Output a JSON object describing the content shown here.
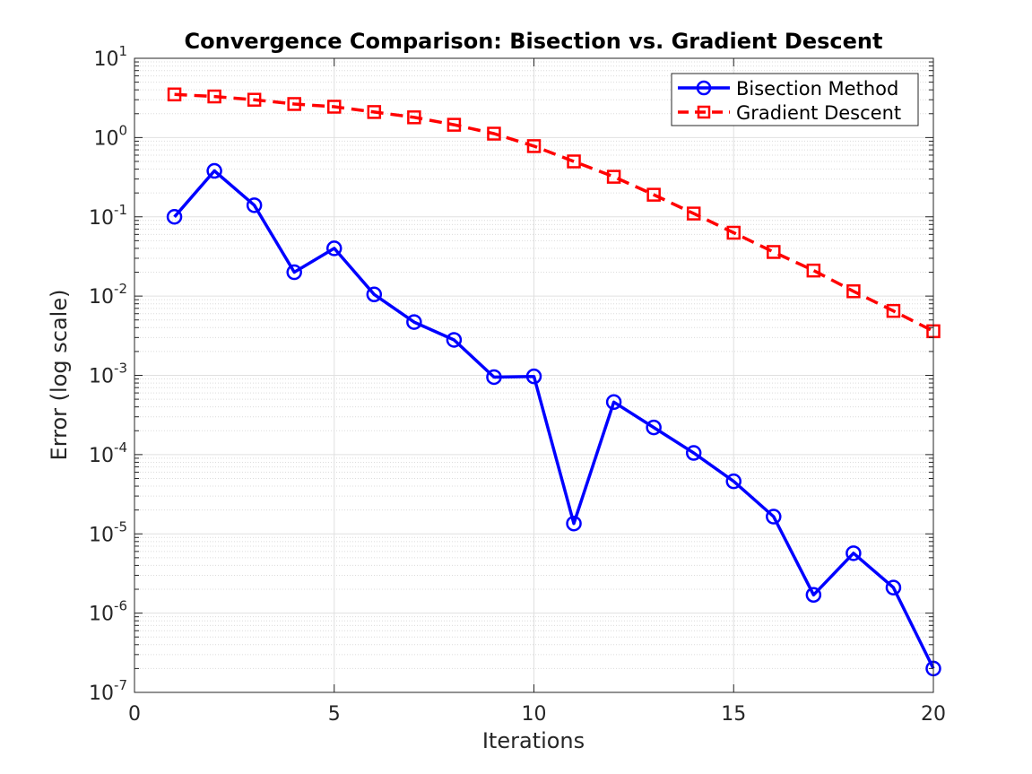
{
  "chart_data": {
    "type": "line",
    "title": "Convergence Comparison: Bisection vs. Gradient Descent",
    "xlabel": "Iterations",
    "ylabel": "Error (log scale)",
    "xlim": [
      0,
      20
    ],
    "ylim": [
      1e-07,
      10
    ],
    "yscale": "log",
    "grid": true,
    "minor_grid": true,
    "legend_position": "top-right",
    "xticks": [
      0,
      5,
      10,
      15,
      20
    ],
    "yticks": [
      {
        "value": 1e-07,
        "base": "10",
        "exp": "-7"
      },
      {
        "value": 1e-06,
        "base": "10",
        "exp": "-6"
      },
      {
        "value": 1e-05,
        "base": "10",
        "exp": "-5"
      },
      {
        "value": 0.0001,
        "base": "10",
        "exp": "-4"
      },
      {
        "value": 0.001,
        "base": "10",
        "exp": "-3"
      },
      {
        "value": 0.01,
        "base": "10",
        "exp": "-2"
      },
      {
        "value": 0.1,
        "base": "10",
        "exp": "-1"
      },
      {
        "value": 1,
        "base": "10",
        "exp": "0"
      },
      {
        "value": 10,
        "base": "10",
        "exp": "1"
      }
    ],
    "x": [
      1,
      2,
      3,
      4,
      5,
      6,
      7,
      8,
      9,
      10,
      11,
      12,
      13,
      14,
      15,
      16,
      17,
      18,
      19,
      20
    ],
    "series": [
      {
        "name": "Bisection Method",
        "color": "#0000ff",
        "line_style": "solid",
        "marker": "circle",
        "values": [
          0.1,
          0.38,
          0.14,
          0.02,
          0.04,
          0.0105,
          0.0047,
          0.0028,
          0.00095,
          0.00097,
          1.35e-05,
          0.00046,
          0.00022,
          0.000105,
          4.6e-05,
          1.65e-05,
          1.7e-06,
          5.7e-06,
          2.1e-06,
          2e-07
        ]
      },
      {
        "name": "Gradient Descent",
        "color": "#ff0000",
        "line_style": "dashed",
        "marker": "square",
        "values": [
          3.5,
          3.3,
          3.0,
          2.65,
          2.45,
          2.1,
          1.8,
          1.45,
          1.12,
          0.78,
          0.5,
          0.32,
          0.19,
          0.11,
          0.063,
          0.036,
          0.021,
          0.0115,
          0.0065,
          0.0036
        ]
      }
    ]
  }
}
